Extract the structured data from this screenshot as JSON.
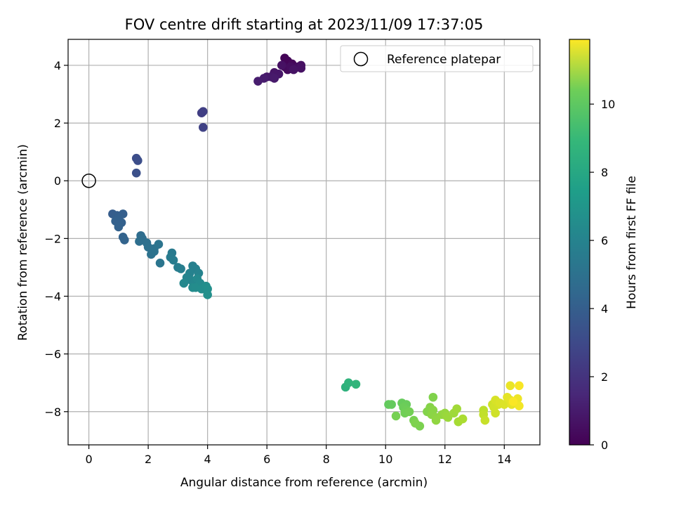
{
  "chart_data": {
    "type": "scatter",
    "title": "FOV centre drift starting at 2023/11/09 17:37:05",
    "xlabel": "Angular distance from reference (arcmin)",
    "ylabel": "Rotation from reference (arcmin)",
    "xlim": [
      -0.7,
      15.2
    ],
    "ylim": [
      -9.15,
      4.9
    ],
    "xticks": [
      0,
      2,
      4,
      6,
      8,
      10,
      12,
      14
    ],
    "yticks": [
      -8,
      -6,
      -4,
      -2,
      0,
      2,
      4
    ],
    "grid": true,
    "legend": {
      "position": "top-right",
      "entries": [
        "Reference platepar"
      ]
    },
    "colorbar": {
      "label": "Hours from first FF file",
      "colormap": "viridis",
      "range": [
        0,
        11.9
      ],
      "ticks": [
        0,
        2,
        4,
        6,
        8,
        10
      ]
    },
    "reference_marker": {
      "x": 0,
      "y": 0,
      "label": "Reference platepar"
    },
    "points": [
      [
        6.6,
        4.25,
        0.1
      ],
      [
        6.7,
        4.15,
        0.15
      ],
      [
        6.85,
        4.05,
        0.2
      ],
      [
        6.6,
        3.95,
        0.25
      ],
      [
        6.7,
        3.85,
        0.3
      ],
      [
        6.95,
        3.9,
        0.35
      ],
      [
        6.8,
        3.95,
        0.4
      ],
      [
        7.05,
        3.95,
        0.45
      ],
      [
        7.15,
        4.0,
        0.5
      ],
      [
        7.15,
        3.9,
        0.55
      ],
      [
        6.5,
        4.0,
        0.55
      ],
      [
        6.9,
        3.85,
        0.6
      ],
      [
        6.25,
        3.75,
        0.6
      ],
      [
        6.2,
        3.65,
        0.65
      ],
      [
        6.3,
        3.7,
        0.7
      ],
      [
        6.4,
        3.7,
        0.72
      ],
      [
        6.0,
        3.6,
        0.75
      ],
      [
        6.15,
        3.6,
        0.8
      ],
      [
        6.25,
        3.55,
        0.85
      ],
      [
        5.9,
        3.55,
        0.9
      ],
      [
        5.7,
        3.45,
        0.95
      ],
      [
        3.8,
        2.35,
        2.2
      ],
      [
        3.85,
        2.4,
        2.25
      ],
      [
        3.85,
        1.85,
        2.35
      ],
      [
        1.6,
        0.78,
        2.8
      ],
      [
        1.65,
        0.7,
        2.85
      ],
      [
        1.6,
        0.27,
        2.95
      ],
      [
        0.8,
        -1.15,
        3.5
      ],
      [
        0.95,
        -1.2,
        3.55
      ],
      [
        1.15,
        -1.15,
        3.6
      ],
      [
        1.0,
        -1.3,
        3.62
      ],
      [
        0.9,
        -1.4,
        3.65
      ],
      [
        1.1,
        -1.45,
        3.68
      ],
      [
        1.0,
        -1.6,
        3.7
      ],
      [
        1.15,
        -1.95,
        3.75
      ],
      [
        1.2,
        -2.05,
        3.8
      ],
      [
        1.75,
        -1.9,
        4.2
      ],
      [
        1.8,
        -2.0,
        4.25
      ],
      [
        1.7,
        -2.1,
        4.3
      ],
      [
        1.95,
        -2.15,
        4.35
      ],
      [
        2.0,
        -2.3,
        4.4
      ],
      [
        2.2,
        -2.35,
        4.45
      ],
      [
        2.1,
        -2.55,
        4.5
      ],
      [
        2.2,
        -2.45,
        4.55
      ],
      [
        2.35,
        -2.2,
        4.6
      ],
      [
        2.4,
        -2.85,
        4.65
      ],
      [
        2.8,
        -2.5,
        4.9
      ],
      [
        2.75,
        -2.65,
        4.95
      ],
      [
        2.85,
        -2.75,
        5.0
      ],
      [
        3.0,
        -3.0,
        5.05
      ],
      [
        3.1,
        -3.05,
        5.1
      ],
      [
        3.5,
        -2.95,
        5.2
      ],
      [
        3.6,
        -3.05,
        5.25
      ],
      [
        3.4,
        -3.2,
        5.3
      ],
      [
        3.7,
        -3.2,
        5.35
      ],
      [
        3.3,
        -3.35,
        5.4
      ],
      [
        3.45,
        -3.45,
        5.45
      ],
      [
        3.55,
        -3.55,
        5.5
      ],
      [
        3.2,
        -3.55,
        5.55
      ],
      [
        3.65,
        -3.4,
        5.6
      ],
      [
        3.75,
        -3.55,
        5.65
      ],
      [
        3.5,
        -3.7,
        5.7
      ],
      [
        3.6,
        -3.7,
        5.75
      ],
      [
        3.8,
        -3.75,
        5.8
      ],
      [
        3.95,
        -3.65,
        5.85
      ],
      [
        4.0,
        -3.75,
        5.9
      ],
      [
        4.0,
        -3.95,
        5.95
      ],
      [
        8.65,
        -7.15,
        7.6
      ],
      [
        8.75,
        -7.0,
        7.7
      ],
      [
        9.0,
        -7.05,
        7.8
      ],
      [
        10.1,
        -7.75,
        9.0
      ],
      [
        10.2,
        -7.75,
        9.05
      ],
      [
        10.55,
        -7.7,
        9.1
      ],
      [
        10.7,
        -7.75,
        9.15
      ],
      [
        10.6,
        -7.85,
        9.2
      ],
      [
        10.7,
        -7.95,
        9.25
      ],
      [
        10.65,
        -8.05,
        9.3
      ],
      [
        10.8,
        -8.0,
        9.35
      ],
      [
        10.35,
        -8.15,
        9.4
      ],
      [
        10.95,
        -8.3,
        9.45
      ],
      [
        11.15,
        -8.5,
        9.5
      ],
      [
        11.0,
        -8.4,
        9.55
      ],
      [
        11.6,
        -7.5,
        9.6
      ],
      [
        11.4,
        -8.0,
        9.65
      ],
      [
        11.5,
        -7.85,
        9.7
      ],
      [
        11.6,
        -7.95,
        9.75
      ],
      [
        11.55,
        -8.1,
        9.8
      ],
      [
        11.7,
        -8.2,
        9.85
      ],
      [
        11.7,
        -8.3,
        9.9
      ],
      [
        11.9,
        -8.1,
        9.95
      ],
      [
        12.0,
        -8.05,
        10.0
      ],
      [
        12.05,
        -8.15,
        10.05
      ],
      [
        12.1,
        -8.2,
        10.1
      ],
      [
        12.3,
        -8.05,
        10.15
      ],
      [
        12.4,
        -7.9,
        10.2
      ],
      [
        12.45,
        -8.35,
        10.3
      ],
      [
        12.6,
        -8.25,
        10.4
      ],
      [
        13.3,
        -7.95,
        10.7
      ],
      [
        13.3,
        -8.1,
        10.8
      ],
      [
        13.35,
        -8.3,
        10.9
      ],
      [
        13.6,
        -7.75,
        11.0
      ],
      [
        13.7,
        -8.05,
        11.05
      ],
      [
        13.65,
        -7.85,
        11.1
      ],
      [
        13.8,
        -7.75,
        11.15
      ],
      [
        13.7,
        -7.6,
        11.2
      ],
      [
        13.85,
        -7.7,
        11.25
      ],
      [
        14.0,
        -7.75,
        11.3
      ],
      [
        14.2,
        -7.6,
        11.4
      ],
      [
        14.1,
        -7.5,
        11.45
      ],
      [
        14.25,
        -7.75,
        11.5
      ],
      [
        14.2,
        -7.1,
        11.55
      ],
      [
        14.45,
        -7.55,
        11.6
      ],
      [
        14.5,
        -7.8,
        11.7
      ],
      [
        14.5,
        -7.1,
        11.8
      ],
      [
        14.3,
        -7.65,
        11.85
      ]
    ]
  }
}
